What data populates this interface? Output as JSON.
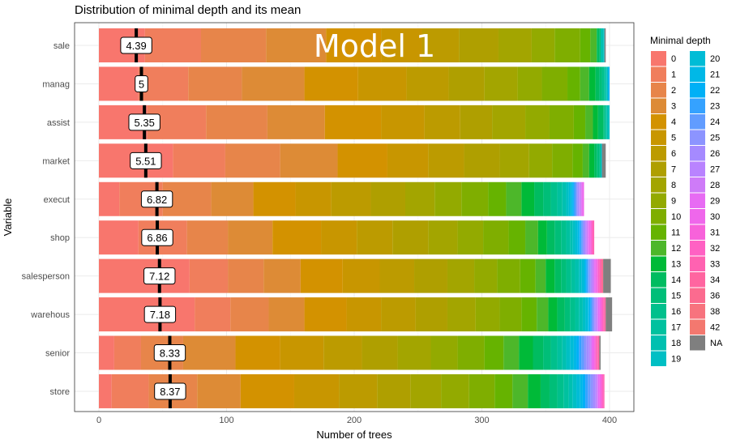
{
  "chart_data": {
    "type": "bar",
    "title": "Distribution of minimal depth and its mean",
    "overlay_text": "Model 1",
    "xlabel": "Number of trees",
    "ylabel": "Variable",
    "xlim": [
      0,
      400
    ],
    "x_ticks": [
      "0",
      "100",
      "200",
      "300",
      "400"
    ],
    "grid": true,
    "legend_title": "Minimal depth",
    "legend_position": "right",
    "categories": [
      "sale",
      "manag",
      "assist",
      "market",
      "execut",
      "shop",
      "salesperson",
      "warehous",
      "senior",
      "store"
    ],
    "mean_minimal_depth": [
      4.39,
      5,
      5.35,
      5.51,
      6.82,
      6.86,
      7.12,
      7.18,
      8.33,
      8.37
    ],
    "mean_labels": [
      "4.39",
      "5",
      "5.35",
      "5.51",
      "6.82",
      "6.86",
      "7.12",
      "7.18",
      "8.33",
      "8.37"
    ],
    "depth_levels": [
      "0",
      "1",
      "2",
      "3",
      "4",
      "5",
      "6",
      "7",
      "8",
      "9",
      "10",
      "11",
      "12",
      "13",
      "14",
      "15",
      "16",
      "17",
      "18",
      "19",
      "20",
      "21",
      "22",
      "23",
      "24",
      "25",
      "26",
      "27",
      "28",
      "29",
      "30",
      "31",
      "32",
      "33",
      "34",
      "36",
      "38",
      "42",
      "NA"
    ],
    "level_colors": [
      "#F8766D",
      "#F07E5C",
      "#E7854A",
      "#DD8B36",
      "#D39200",
      "#C89600",
      "#BC9B00",
      "#AF9F00",
      "#A3A500",
      "#93AA00",
      "#7FAE00",
      "#66B300",
      "#4DB72A",
      "#00BA38",
      "#00BC60",
      "#00BE78",
      "#00C08C",
      "#00C19F",
      "#00C0B0",
      "#00BFC4",
      "#00BCD6",
      "#00B8E7",
      "#00B0F6",
      "#35A2FF",
      "#619CFF",
      "#8C94FF",
      "#A58AFF",
      "#B983FF",
      "#CE7BF8",
      "#E76BF3",
      "#EF67EB",
      "#F762DA",
      "#FF61C3",
      "#FF62B1",
      "#FF65A0",
      "#FB6B8F",
      "#F7737E",
      "#F3786F",
      "#7F7F7F"
    ],
    "counts_by_variable": {
      "sale": [
        36,
        44,
        51,
        47,
        43,
        32,
        29,
        31,
        26,
        18,
        20,
        8,
        5,
        0,
        2,
        1,
        0,
        0,
        2,
        1,
        0,
        0,
        0,
        0,
        0,
        0,
        0,
        0,
        0,
        0,
        0,
        0,
        0,
        0,
        0,
        0,
        0,
        0,
        1
      ],
      "manag": [
        31,
        39,
        42,
        49,
        42,
        38,
        33,
        28,
        26,
        19,
        20,
        10,
        7,
        5,
        3,
        2,
        2,
        1,
        1,
        1,
        0,
        0,
        1,
        0,
        0,
        0,
        0,
        0,
        0,
        0,
        0,
        0,
        0,
        0,
        0,
        0,
        0,
        0,
        0
      ],
      "assist": [
        38,
        46,
        48,
        45,
        44,
        34,
        28,
        25,
        26,
        19,
        19,
        9,
        6,
        4,
        4,
        1,
        1,
        1,
        1,
        1,
        0,
        0,
        0,
        0,
        0,
        0,
        0,
        0,
        0,
        0,
        0,
        0,
        0,
        0,
        0,
        0,
        0,
        0,
        0
      ],
      "market": [
        58,
        41,
        43,
        45,
        39,
        32,
        28,
        28,
        23,
        18,
        16,
        8,
        5,
        4,
        2,
        2,
        1,
        0,
        0,
        1,
        0,
        0,
        0,
        0,
        0,
        0,
        0,
        0,
        0,
        0,
        0,
        0,
        0,
        0,
        0,
        0,
        0,
        0,
        3
      ],
      "execut": [
        16,
        34,
        38,
        33,
        33,
        28,
        31,
        27,
        23,
        21,
        21,
        14,
        12,
        10,
        7,
        6,
        5,
        4,
        3,
        2,
        2,
        1,
        1,
        1,
        1,
        1,
        1,
        1,
        1,
        1,
        1,
        0,
        0,
        0,
        0,
        0,
        0,
        0,
        0
      ],
      "shop": [
        31,
        38,
        32,
        35,
        38,
        28,
        28,
        28,
        23,
        20,
        20,
        13,
        10,
        7,
        6,
        5,
        4,
        3,
        2,
        2,
        2,
        1,
        1,
        1,
        1,
        1,
        1,
        1,
        1,
        1,
        1,
        1,
        1,
        1,
        0,
        0,
        0,
        0,
        0
      ],
      "salesperson": [
        71,
        30,
        28,
        29,
        33,
        29,
        27,
        26,
        21,
        18,
        18,
        12,
        8,
        7,
        5,
        4,
        4,
        3,
        3,
        2,
        2,
        1,
        1,
        1,
        1,
        1,
        1,
        1,
        1,
        1,
        1,
        1,
        1,
        1,
        1,
        1,
        0,
        0,
        6
      ],
      "warehous": [
        75,
        28,
        30,
        28,
        33,
        27,
        27,
        25,
        22,
        19,
        17,
        12,
        9,
        7,
        6,
        4,
        4,
        3,
        3,
        2,
        2,
        1,
        1,
        1,
        1,
        1,
        1,
        1,
        1,
        1,
        1,
        1,
        1,
        1,
        1,
        0,
        0,
        0,
        5
      ],
      "senior": [
        12,
        21,
        33,
        41,
        35,
        34,
        30,
        28,
        26,
        21,
        21,
        15,
        12,
        11,
        8,
        6,
        5,
        4,
        3,
        3,
        3,
        2,
        2,
        2,
        2,
        2,
        2,
        1,
        1,
        1,
        1,
        1,
        1,
        1,
        1,
        0,
        0,
        0,
        1
      ],
      "store": [
        10,
        29,
        38,
        34,
        42,
        35,
        30,
        26,
        24,
        22,
        20,
        14,
        12,
        10,
        7,
        6,
        5,
        4,
        3,
        3,
        3,
        2,
        2,
        2,
        2,
        2,
        2,
        1,
        1,
        1,
        1,
        1,
        1,
        1,
        0,
        0,
        0,
        0,
        0
      ]
    }
  }
}
